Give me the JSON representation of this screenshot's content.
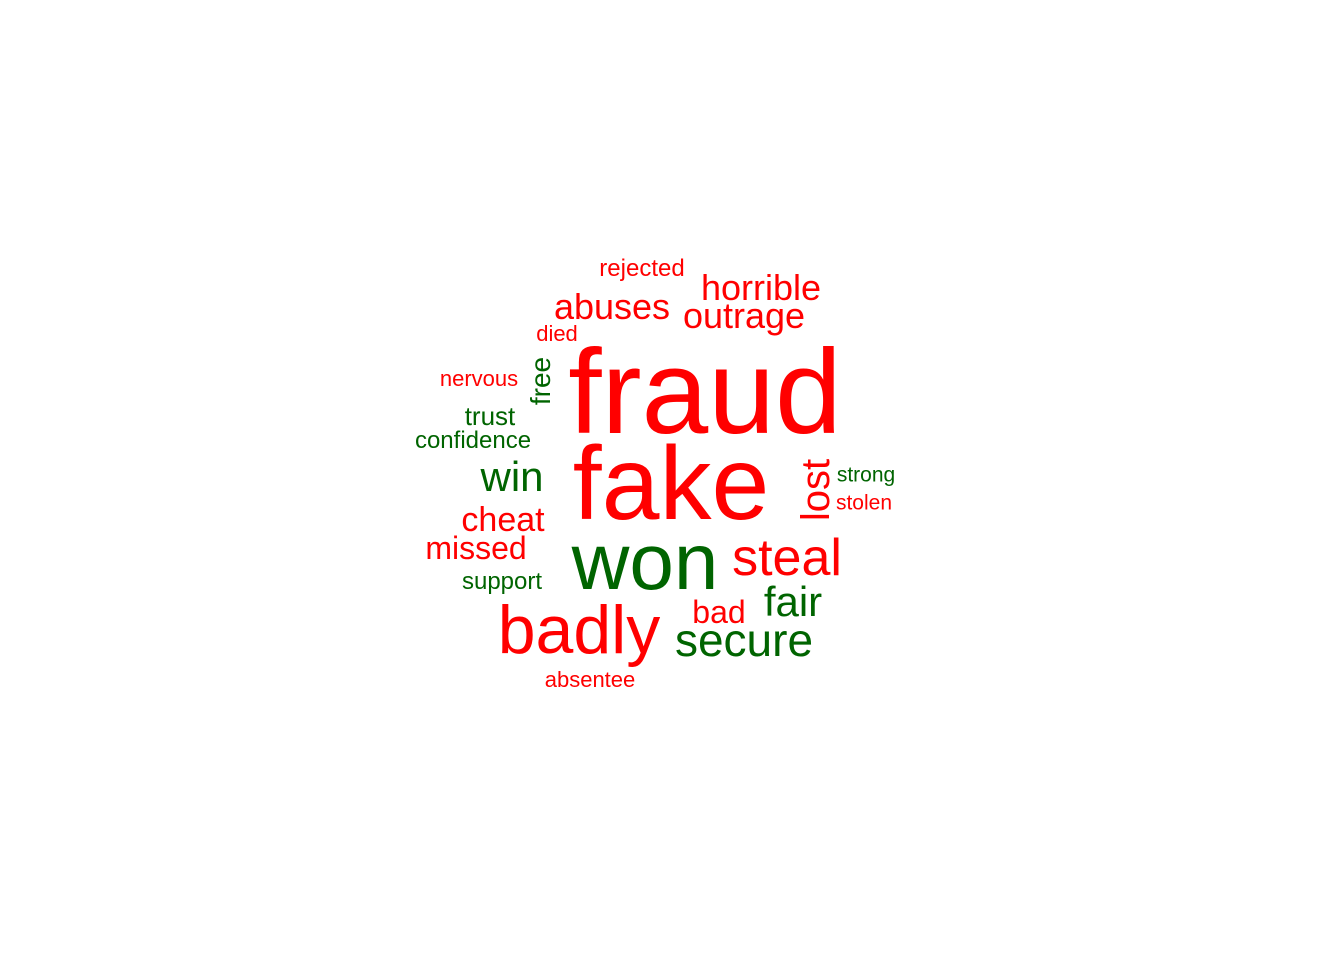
{
  "colors": {
    "negative": "#ff0000",
    "positive": "#006400",
    "background": "#ffffff"
  },
  "words": [
    {
      "text": "fraud",
      "sentiment": "negative",
      "orientation": "horizontal"
    },
    {
      "text": "fake",
      "sentiment": "negative",
      "orientation": "horizontal"
    },
    {
      "text": "won",
      "sentiment": "positive",
      "orientation": "horizontal"
    },
    {
      "text": "badly",
      "sentiment": "negative",
      "orientation": "horizontal"
    },
    {
      "text": "steal",
      "sentiment": "negative",
      "orientation": "horizontal"
    },
    {
      "text": "secure",
      "sentiment": "positive",
      "orientation": "horizontal"
    },
    {
      "text": "win",
      "sentiment": "positive",
      "orientation": "horizontal"
    },
    {
      "text": "fair",
      "sentiment": "positive",
      "orientation": "horizontal"
    },
    {
      "text": "lost",
      "sentiment": "negative",
      "orientation": "vertical"
    },
    {
      "text": "horrible",
      "sentiment": "negative",
      "orientation": "horizontal"
    },
    {
      "text": "abuses",
      "sentiment": "negative",
      "orientation": "horizontal"
    },
    {
      "text": "outrage",
      "sentiment": "negative",
      "orientation": "horizontal"
    },
    {
      "text": "cheat",
      "sentiment": "negative",
      "orientation": "horizontal"
    },
    {
      "text": "missed",
      "sentiment": "negative",
      "orientation": "horizontal"
    },
    {
      "text": "bad",
      "sentiment": "negative",
      "orientation": "horizontal"
    },
    {
      "text": "free",
      "sentiment": "positive",
      "orientation": "vertical"
    },
    {
      "text": "trust",
      "sentiment": "positive",
      "orientation": "horizontal"
    },
    {
      "text": "confidence",
      "sentiment": "positive",
      "orientation": "horizontal"
    },
    {
      "text": "support",
      "sentiment": "positive",
      "orientation": "horizontal"
    },
    {
      "text": "rejected",
      "sentiment": "negative",
      "orientation": "horizontal"
    },
    {
      "text": "died",
      "sentiment": "negative",
      "orientation": "horizontal"
    },
    {
      "text": "nervous",
      "sentiment": "negative",
      "orientation": "horizontal"
    },
    {
      "text": "strong",
      "sentiment": "positive",
      "orientation": "horizontal"
    },
    {
      "text": "stolen",
      "sentiment": "negative",
      "orientation": "horizontal"
    },
    {
      "text": "absentee",
      "sentiment": "negative",
      "orientation": "horizontal"
    }
  ]
}
